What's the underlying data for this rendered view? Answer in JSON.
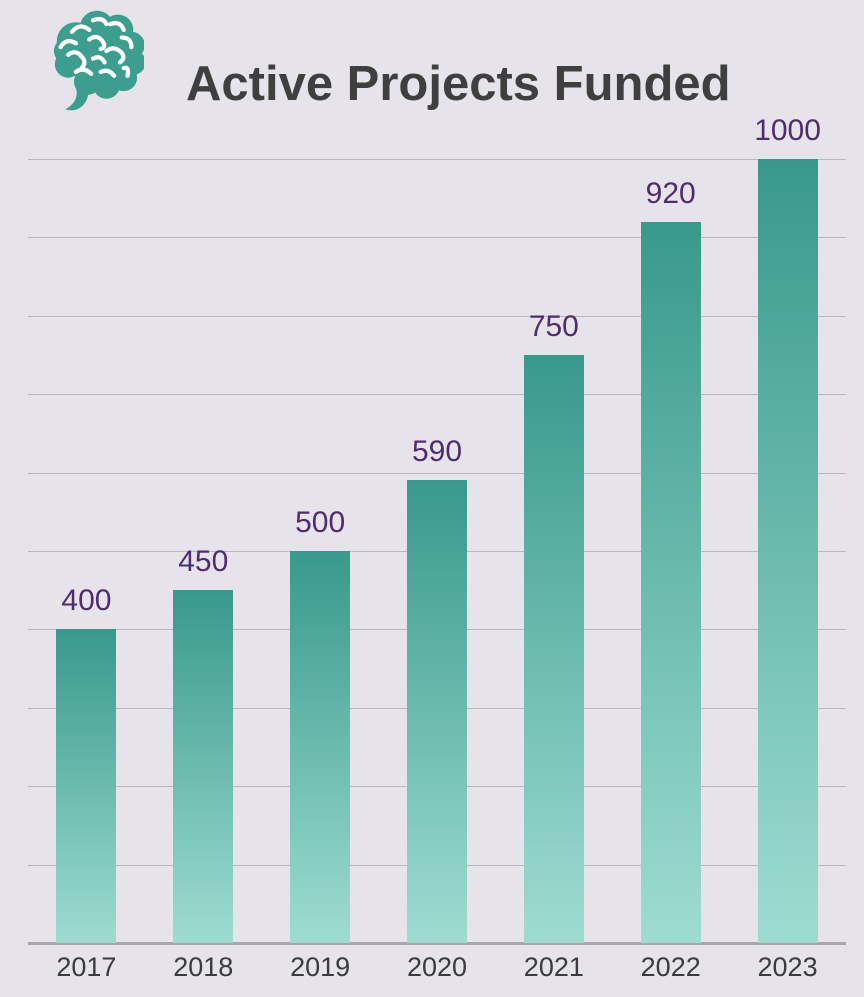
{
  "header": {
    "title": "Active Projects Funded",
    "icon": "brain-icon"
  },
  "chart_data": {
    "type": "bar",
    "title": "Active Projects Funded",
    "categories": [
      "2017",
      "2018",
      "2019",
      "2020",
      "2021",
      "2022",
      "2023"
    ],
    "values": [
      400,
      450,
      500,
      590,
      750,
      920,
      1000
    ],
    "xlabel": "",
    "ylabel": "",
    "ylim": [
      0,
      1000
    ],
    "gridline_step": 100,
    "grid": true,
    "legend": false,
    "bar_value_labels_shown": true
  },
  "colors": {
    "background": "#E6E4EA",
    "bar_gradient_top": "#38998B",
    "bar_gradient_bottom": "#9EDCD1",
    "value_label": "#4E2C6E",
    "category_label": "#3B3B3B",
    "gridline": "#BAB8BE",
    "axis_line": "#A9A7AD",
    "title": "#3F3F3F",
    "icon": "#3D9E8F"
  }
}
